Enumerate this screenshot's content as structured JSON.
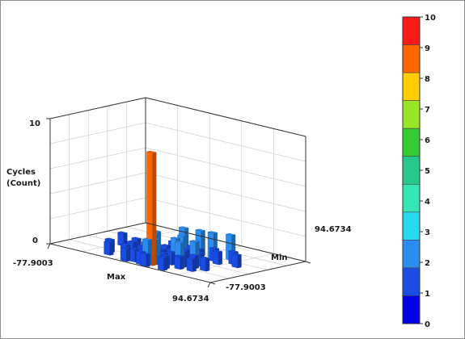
{
  "chart_data": {
    "type": "3d-bar-histogram",
    "title": "",
    "z_axis": {
      "label_line1": "Cycles",
      "label_line2": "(Count)",
      "ticks": [
        "10",
        "0"
      ],
      "range": [
        0,
        10
      ]
    },
    "x_axis": {
      "label": "Max",
      "min_label": "-77.9003",
      "max_label": "94.6734"
    },
    "y_axis": {
      "label": "Min",
      "min_label": "-77.9003",
      "max_label": "94.6734"
    },
    "colorbar": {
      "ticks": [
        "10",
        "9",
        "8",
        "7",
        "6",
        "5",
        "4",
        "3",
        "2",
        "1",
        "0"
      ],
      "colors": [
        "#ff1a1a",
        "#ff6600",
        "#ffcc00",
        "#99e626",
        "#33cc33",
        "#26c88c",
        "#33e6b3",
        "#26d9f2",
        "#2b8cf2",
        "#1a4de6",
        "#0000e6"
      ]
    },
    "bars": [
      {
        "x": 7.0,
        "y": 1.0,
        "z": 9
      },
      {
        "x": 6.5,
        "y": 0.5,
        "z": 1
      },
      {
        "x": 6.2,
        "y": 1.3,
        "z": 1
      },
      {
        "x": 7.5,
        "y": 1.6,
        "z": 1
      },
      {
        "x": 5.8,
        "y": 0.8,
        "z": 1
      },
      {
        "x": 8.0,
        "y": 1.0,
        "z": 1
      },
      {
        "x": 7.0,
        "y": 2.0,
        "z": 1
      },
      {
        "x": 6.8,
        "y": 2.6,
        "z": 1
      },
      {
        "x": 7.6,
        "y": 2.4,
        "z": 1
      },
      {
        "x": 8.4,
        "y": 2.6,
        "z": 1
      },
      {
        "x": 8.6,
        "y": 1.8,
        "z": 1
      },
      {
        "x": 9.4,
        "y": 2.0,
        "z": 1
      },
      {
        "x": 5.6,
        "y": 2.2,
        "z": 1
      },
      {
        "x": 4.8,
        "y": 1.4,
        "z": 1
      },
      {
        "x": 6.0,
        "y": 3.0,
        "z": 1
      },
      {
        "x": 7.2,
        "y": 3.2,
        "z": 1
      },
      {
        "x": 8.0,
        "y": 3.4,
        "z": 1
      },
      {
        "x": 9.0,
        "y": 3.0,
        "z": 1
      },
      {
        "x": 6.4,
        "y": 3.8,
        "z": 1
      },
      {
        "x": 7.8,
        "y": 4.0,
        "z": 1
      },
      {
        "x": 5.2,
        "y": 3.4,
        "z": 1
      },
      {
        "x": 4.6,
        "y": 2.6,
        "z": 1
      },
      {
        "x": 8.8,
        "y": 4.0,
        "z": 1
      },
      {
        "x": 9.8,
        "y": 3.0,
        "z": 1
      },
      {
        "x": 3.8,
        "y": 1.0,
        "z": 1
      },
      {
        "x": 4.2,
        "y": 3.8,
        "z": 1
      },
      {
        "x": 6.9,
        "y": 4.6,
        "z": 1
      },
      {
        "x": 7.4,
        "y": 5.2,
        "z": 1
      },
      {
        "x": 8.2,
        "y": 5.0,
        "z": 1
      },
      {
        "x": 9.2,
        "y": 5.6,
        "z": 1
      },
      {
        "x": 8.6,
        "y": 6.2,
        "z": 1
      },
      {
        "x": 10.4,
        "y": 6.0,
        "z": 1
      },
      {
        "x": 9.8,
        "y": 6.6,
        "z": 1
      },
      {
        "x": 2.8,
        "y": 4.4,
        "z": 1
      },
      {
        "x": 3.4,
        "y": 1.8,
        "z": 1
      },
      {
        "x": 5.0,
        "y": 4.6,
        "z": 1
      },
      {
        "x": 6.0,
        "y": 5.4,
        "z": 1
      },
      {
        "x": 5.4,
        "y": 0.4,
        "z": 1
      },
      {
        "x": 8.2,
        "y": 0.4,
        "z": 1
      },
      {
        "x": 7.0,
        "y": 0.2,
        "z": 1
      },
      {
        "x": 7.0,
        "y": 1.5,
        "z": 2
      },
      {
        "x": 6.4,
        "y": 2.2,
        "z": 2
      },
      {
        "x": 7.6,
        "y": 3.0,
        "z": 2
      },
      {
        "x": 8.4,
        "y": 2.2,
        "z": 2
      },
      {
        "x": 5.8,
        "y": 3.6,
        "z": 2
      },
      {
        "x": 6.8,
        "y": 0.8,
        "z": 2
      },
      {
        "x": 7.4,
        "y": 4.2,
        "z": 2
      },
      {
        "x": 8.8,
        "y": 3.4,
        "z": 2
      },
      {
        "x": 7.2,
        "y": 6.8,
        "z": 2
      },
      {
        "x": 8.0,
        "y": 7.0,
        "z": 2
      },
      {
        "x": 6.2,
        "y": 6.4,
        "z": 2
      },
      {
        "x": 9.0,
        "y": 7.6,
        "z": 2
      }
    ]
  }
}
